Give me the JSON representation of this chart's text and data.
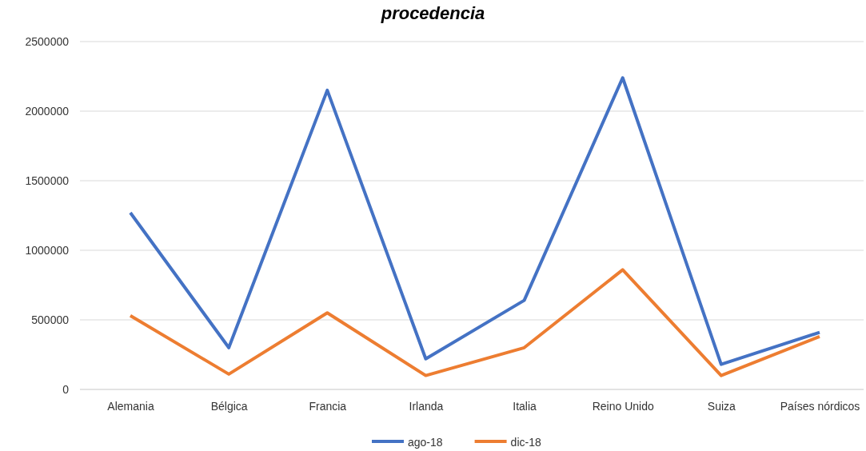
{
  "chart_data": {
    "type": "line",
    "title": "procedencia",
    "categories": [
      "Alemania",
      "Bélgica",
      "Francia",
      "Irlanda",
      "Italia",
      "Reino Unido",
      "Suiza",
      "Países nórdicos"
    ],
    "series": [
      {
        "name": "ago-18",
        "color": "#4472c4",
        "values": [
          1270000,
          300000,
          2150000,
          220000,
          640000,
          2240000,
          180000,
          410000
        ]
      },
      {
        "name": "dic-18",
        "color": "#ed7d31",
        "values": [
          530000,
          110000,
          550000,
          100000,
          300000,
          860000,
          100000,
          380000
        ]
      }
    ],
    "ylim": [
      0,
      2500000
    ],
    "yticks": [
      0,
      500000,
      1000000,
      1500000,
      2000000,
      2500000
    ],
    "grid": "y",
    "legend": "bottom",
    "marker": "none",
    "line_style": "solid"
  }
}
